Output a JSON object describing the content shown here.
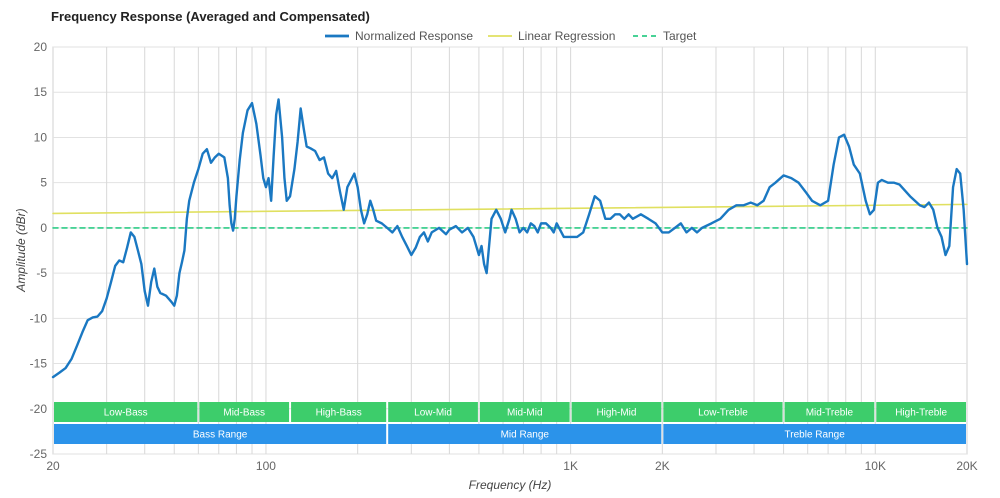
{
  "chart_data": {
    "type": "line",
    "title": "Frequency Response (Averaged and Compensated)",
    "xlabel": "Frequency (Hz)",
    "ylabel": "Amplitude (dBr)",
    "x_scale": "log",
    "xlim": [
      20,
      20000
    ],
    "ylim": [
      -25,
      20
    ],
    "grid": true,
    "legend_position": "top-center",
    "x_tick_labels": [
      {
        "value": 20,
        "label": "20"
      },
      {
        "value": 100,
        "label": "100"
      },
      {
        "value": 1000,
        "label": "1K"
      },
      {
        "value": 2000,
        "label": "2K"
      },
      {
        "value": 10000,
        "label": "10K"
      },
      {
        "value": 20000,
        "label": "20K"
      }
    ],
    "y_ticks": [
      20,
      15,
      10,
      5,
      0,
      -5,
      -10,
      -15,
      -20,
      -25
    ],
    "series": [
      {
        "name": "Normalized Response",
        "color": "#1a78c2",
        "style": "solid",
        "points": [
          [
            20,
            -16.5
          ],
          [
            21,
            -16.0
          ],
          [
            22,
            -15.5
          ],
          [
            23,
            -14.5
          ],
          [
            24,
            -13
          ],
          [
            25,
            -11.5
          ],
          [
            26,
            -10.2
          ],
          [
            27,
            -9.9
          ],
          [
            28,
            -9.8
          ],
          [
            29,
            -9.2
          ],
          [
            30,
            -7.8
          ],
          [
            31,
            -6.0
          ],
          [
            32,
            -4.2
          ],
          [
            33,
            -3.6
          ],
          [
            34,
            -3.8
          ],
          [
            35,
            -2.2
          ],
          [
            36,
            -0.5
          ],
          [
            37,
            -1.0
          ],
          [
            38,
            -2.5
          ],
          [
            39,
            -4.0
          ],
          [
            40,
            -7.0
          ],
          [
            41,
            -8.6
          ],
          [
            42,
            -6.0
          ],
          [
            43,
            -4.5
          ],
          [
            44,
            -6.5
          ],
          [
            45,
            -7.2
          ],
          [
            47,
            -7.5
          ],
          [
            49,
            -8.2
          ],
          [
            50,
            -8.6
          ],
          [
            51,
            -7.5
          ],
          [
            52,
            -5.0
          ],
          [
            53,
            -3.8
          ],
          [
            54,
            -2.5
          ],
          [
            55,
            1.0
          ],
          [
            56,
            3.0
          ],
          [
            58,
            5.0
          ],
          [
            60,
            6.5
          ],
          [
            62,
            8.2
          ],
          [
            64,
            8.7
          ],
          [
            66,
            7.2
          ],
          [
            68,
            7.8
          ],
          [
            70,
            8.2
          ],
          [
            73,
            7.8
          ],
          [
            75,
            5.5
          ],
          [
            76,
            2.5
          ],
          [
            77,
            0.5
          ],
          [
            78,
            -0.3
          ],
          [
            79,
            1.0
          ],
          [
            80,
            3.5
          ],
          [
            82,
            7.5
          ],
          [
            84,
            10.5
          ],
          [
            87,
            13.0
          ],
          [
            90,
            13.8
          ],
          [
            93,
            11.5
          ],
          [
            96,
            8.0
          ],
          [
            98,
            5.5
          ],
          [
            100,
            4.5
          ],
          [
            102,
            5.5
          ],
          [
            104,
            3.0
          ],
          [
            106,
            8.0
          ],
          [
            108,
            12.5
          ],
          [
            110,
            14.2
          ],
          [
            113,
            10.0
          ],
          [
            115,
            5.5
          ],
          [
            117,
            3.0
          ],
          [
            120,
            3.5
          ],
          [
            124,
            6.5
          ],
          [
            127,
            9.5
          ],
          [
            130,
            13.2
          ],
          [
            133,
            11.0
          ],
          [
            136,
            9.0
          ],
          [
            140,
            8.8
          ],
          [
            145,
            8.5
          ],
          [
            150,
            7.5
          ],
          [
            155,
            7.8
          ],
          [
            160,
            6.0
          ],
          [
            165,
            5.5
          ],
          [
            170,
            6.3
          ],
          [
            175,
            4.0
          ],
          [
            180,
            2.0
          ],
          [
            185,
            4.5
          ],
          [
            195,
            6.0
          ],
          [
            200,
            4.5
          ],
          [
            205,
            2.0
          ],
          [
            210,
            0.5
          ],
          [
            215,
            1.5
          ],
          [
            220,
            3.0
          ],
          [
            225,
            2.0
          ],
          [
            230,
            0.8
          ],
          [
            240,
            0.5
          ],
          [
            250,
            0.0
          ],
          [
            260,
            -0.5
          ],
          [
            270,
            0.2
          ],
          [
            280,
            -1.0
          ],
          [
            290,
            -2.0
          ],
          [
            300,
            -3.0
          ],
          [
            310,
            -2.2
          ],
          [
            320,
            -1.0
          ],
          [
            330,
            -0.5
          ],
          [
            340,
            -1.5
          ],
          [
            350,
            -0.5
          ],
          [
            370,
            0.0
          ],
          [
            390,
            -0.7
          ],
          [
            400,
            -0.2
          ],
          [
            420,
            0.2
          ],
          [
            440,
            -0.5
          ],
          [
            460,
            0.0
          ],
          [
            480,
            -1.0
          ],
          [
            500,
            -3.0
          ],
          [
            510,
            -2.0
          ],
          [
            520,
            -4.0
          ],
          [
            530,
            -5.0
          ],
          [
            540,
            -2.0
          ],
          [
            550,
            1.0
          ],
          [
            570,
            2.0
          ],
          [
            590,
            1.0
          ],
          [
            610,
            -0.5
          ],
          [
            630,
            1.0
          ],
          [
            640,
            2.0
          ],
          [
            660,
            1.0
          ],
          [
            680,
            -0.5
          ],
          [
            700,
            0.0
          ],
          [
            720,
            -0.5
          ],
          [
            740,
            0.5
          ],
          [
            760,
            0.2
          ],
          [
            780,
            -0.5
          ],
          [
            800,
            0.5
          ],
          [
            830,
            0.5
          ],
          [
            860,
            0.0
          ],
          [
            880,
            -0.5
          ],
          [
            900,
            0.5
          ],
          [
            950,
            -1.0
          ],
          [
            1000,
            -1.0
          ],
          [
            1050,
            -1.0
          ],
          [
            1100,
            -0.5
          ],
          [
            1150,
            1.5
          ],
          [
            1200,
            3.5
          ],
          [
            1250,
            3.0
          ],
          [
            1300,
            1.0
          ],
          [
            1350,
            1.0
          ],
          [
            1400,
            1.5
          ],
          [
            1450,
            1.5
          ],
          [
            1500,
            1.0
          ],
          [
            1550,
            1.5
          ],
          [
            1600,
            1.0
          ],
          [
            1700,
            1.5
          ],
          [
            1800,
            1.0
          ],
          [
            1900,
            0.5
          ],
          [
            2000,
            -0.5
          ],
          [
            2100,
            -0.5
          ],
          [
            2200,
            0.0
          ],
          [
            2300,
            0.5
          ],
          [
            2400,
            -0.5
          ],
          [
            2500,
            0.0
          ],
          [
            2600,
            -0.5
          ],
          [
            2700,
            0.0
          ],
          [
            2900,
            0.5
          ],
          [
            3100,
            1.0
          ],
          [
            3300,
            2.0
          ],
          [
            3500,
            2.5
          ],
          [
            3700,
            2.5
          ],
          [
            3900,
            2.8
          ],
          [
            4100,
            2.5
          ],
          [
            4300,
            3.0
          ],
          [
            4500,
            4.5
          ],
          [
            4700,
            5.0
          ],
          [
            5000,
            5.8
          ],
          [
            5300,
            5.5
          ],
          [
            5600,
            5.0
          ],
          [
            5900,
            4.0
          ],
          [
            6200,
            3.0
          ],
          [
            6600,
            2.5
          ],
          [
            7000,
            3.0
          ],
          [
            7300,
            7.0
          ],
          [
            7600,
            10.0
          ],
          [
            7900,
            10.3
          ],
          [
            8200,
            9.0
          ],
          [
            8500,
            7.0
          ],
          [
            8900,
            6.0
          ],
          [
            9300,
            3.0
          ],
          [
            9600,
            1.5
          ],
          [
            9900,
            2.0
          ],
          [
            10200,
            5.0
          ],
          [
            10500,
            5.3
          ],
          [
            11000,
            5.0
          ],
          [
            11500,
            5.0
          ],
          [
            12000,
            4.8
          ],
          [
            13000,
            3.5
          ],
          [
            14000,
            2.5
          ],
          [
            14500,
            2.3
          ],
          [
            15000,
            2.8
          ],
          [
            15500,
            2.0
          ],
          [
            16000,
            0.0
          ],
          [
            16500,
            -1.0
          ],
          [
            17000,
            -3.0
          ],
          [
            17500,
            -2.0
          ],
          [
            18000,
            4.5
          ],
          [
            18500,
            6.5
          ],
          [
            19000,
            6.0
          ],
          [
            19500,
            2.0
          ],
          [
            20000,
            -4.0
          ]
        ]
      },
      {
        "name": "Linear Regression",
        "color": "#e0e060",
        "style": "solid",
        "points": [
          [
            20,
            1.6
          ],
          [
            20000,
            2.6
          ]
        ]
      },
      {
        "name": "Target",
        "color": "#2ecc87",
        "style": "dashed",
        "points": [
          [
            20,
            0
          ],
          [
            20000,
            0
          ]
        ]
      }
    ],
    "ranges_row1": [
      {
        "label": "Low-Bass",
        "start": 20,
        "end": 60
      },
      {
        "label": "Mid-Bass",
        "start": 60,
        "end": 120
      },
      {
        "label": "High-Bass",
        "start": 120,
        "end": 250
      },
      {
        "label": "Low-Mid",
        "start": 250,
        "end": 500
      },
      {
        "label": "Mid-Mid",
        "start": 500,
        "end": 1000
      },
      {
        "label": "High-Mid",
        "start": 1000,
        "end": 2000
      },
      {
        "label": "Low-Treble",
        "start": 2000,
        "end": 5000
      },
      {
        "label": "Mid-Treble",
        "start": 5000,
        "end": 10000
      },
      {
        "label": "High-Treble",
        "start": 10000,
        "end": 20000
      }
    ],
    "ranges_row2": [
      {
        "label": "Bass Range",
        "start": 20,
        "end": 250
      },
      {
        "label": "Mid Range",
        "start": 250,
        "end": 2000
      },
      {
        "label": "Treble Range",
        "start": 2000,
        "end": 20000
      }
    ],
    "range_colors": {
      "row1": "#3dcd6b",
      "row2": "#2b93ea"
    }
  }
}
